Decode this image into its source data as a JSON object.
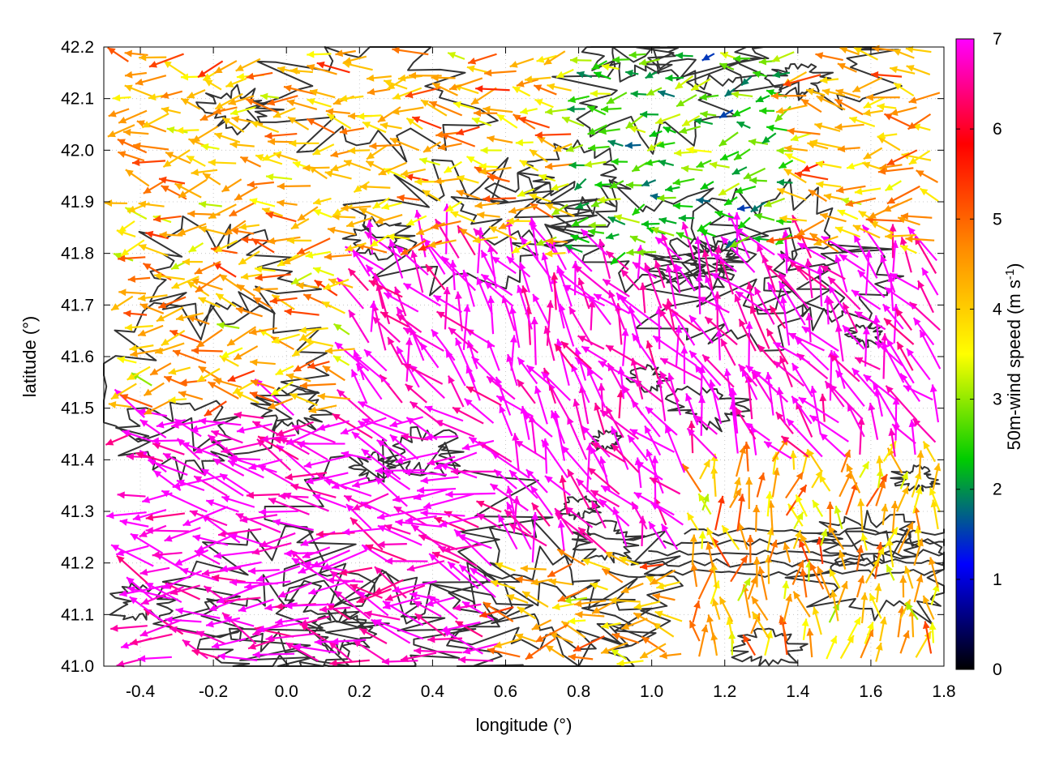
{
  "chart_data": {
    "type": "vector-field",
    "xlabel": "longitude (°)",
    "ylabel": "latitude (°)",
    "xlim": [
      -0.5,
      1.8
    ],
    "ylim": [
      41.0,
      42.2
    ],
    "x_ticks": [
      "-0.4",
      "-0.2",
      "0.0",
      "0.2",
      "0.4",
      "0.6",
      "0.8",
      "1.0",
      "1.2",
      "1.4",
      "1.6",
      "1.8"
    ],
    "y_ticks": [
      "41.0",
      "41.1",
      "41.2",
      "41.3",
      "41.4",
      "41.5",
      "41.6",
      "41.7",
      "41.8",
      "41.9",
      "42.0",
      "42.1",
      "42.2"
    ],
    "grid": "dotted",
    "contours": "terrain contour lines (dark gray)",
    "colorbar": {
      "label": "50m-wind speed (m s",
      "label_sup": "-1",
      "label_end": ")",
      "range": [
        0,
        7
      ],
      "ticks": [
        "0",
        "1",
        "2",
        "3",
        "4",
        "5",
        "6",
        "7"
      ],
      "palette": [
        "#000000",
        "#0000ff",
        "#00cc00",
        "#ffff00",
        "#ff8c00",
        "#ff0000",
        "#ff00ff"
      ]
    },
    "wind_regions": [
      {
        "lon": [
          -0.5,
          1.8
        ],
        "lat": [
          41.0,
          42.2
        ],
        "speed": [
          3.5,
          5.0
        ],
        "direction_deg": 180
      },
      {
        "lon": [
          0.2,
          1.8
        ],
        "lat": [
          41.2,
          41.8
        ],
        "speed": 7,
        "direction_deg": 120
      },
      {
        "lon": [
          -0.5,
          0.6
        ],
        "lat": [
          41.0,
          41.5
        ],
        "speed": 7,
        "direction_deg": 170
      },
      {
        "lon": [
          1.1,
          1.8
        ],
        "lat": [
          41.0,
          41.4
        ],
        "speed": [
          3.5,
          5.0
        ],
        "direction_deg": 90
      },
      {
        "lon": [
          0.8,
          1.4
        ],
        "lat": [
          41.8,
          42.2
        ],
        "speed": [
          2,
          3
        ],
        "direction_deg": 190
      }
    ]
  }
}
